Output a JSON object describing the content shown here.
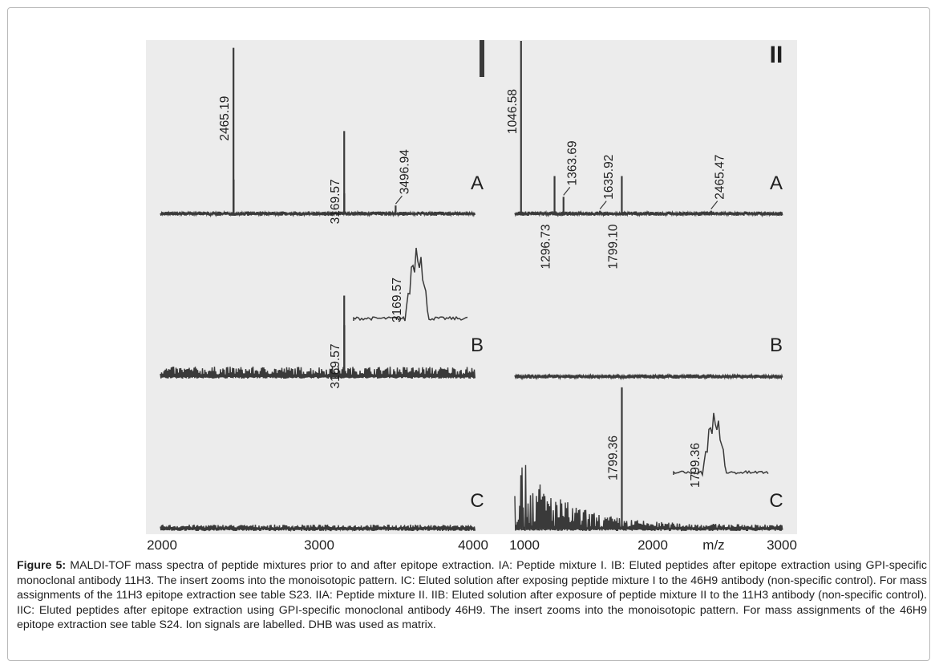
{
  "chart_data": [
    {
      "type": "line",
      "panel": "I",
      "xlim": [
        2000,
        4000
      ],
      "x_ticks": [
        "2000",
        "3000",
        "4000"
      ],
      "spectra": [
        {
          "label": "A",
          "noise": "low",
          "peaks": [
            {
              "mz": 2465.19,
              "rel": 0.96,
              "label": "2465.19"
            },
            {
              "mz": 2466.2,
              "rel": 0.2
            },
            {
              "mz": 3169.57,
              "rel": 0.48,
              "label": "3169.57"
            },
            {
              "mz": 3170.6,
              "rel": 0.12
            },
            {
              "mz": 3496.94,
              "rel": 0.05,
              "label": "3496.94"
            }
          ]
        },
        {
          "label": "B",
          "noise": "high",
          "peaks": [
            {
              "mz": 3169.57,
              "rel": 0.47,
              "label": "3169.57"
            },
            {
              "mz": 3170.6,
              "rel": 0.3
            }
          ],
          "insert": {
            "peak_label": "3169.57"
          }
        },
        {
          "label": "C",
          "noise": "flat",
          "peaks": []
        }
      ]
    },
    {
      "type": "line",
      "panel": "II",
      "xlim": [
        1000,
        3000
      ],
      "x_ticks": [
        "1000",
        "2000",
        "3000"
      ],
      "xlabel": "m/z",
      "spectra": [
        {
          "label": "A",
          "noise": "low",
          "peaks": [
            {
              "mz": 1046.58,
              "rel": 1.0,
              "label": "1046.58"
            },
            {
              "mz": 1296.73,
              "rel": 0.22,
              "label": "1296.73"
            },
            {
              "mz": 1363.69,
              "rel": 0.1,
              "label": "1363.69"
            },
            {
              "mz": 1635.92,
              "rel": 0.02,
              "label": "1635.92"
            },
            {
              "mz": 1799.1,
              "rel": 0.22,
              "label": "1799.10"
            },
            {
              "mz": 2465.47,
              "rel": 0.02,
              "label": "2465.47"
            }
          ]
        },
        {
          "label": "B",
          "noise": "low",
          "peaks": []
        },
        {
          "label": "C",
          "noise": "decay",
          "peaks": [
            {
              "mz": 1799.36,
              "rel": 0.82,
              "label": "1799.36"
            }
          ],
          "insert": {
            "peak_label": "1799.36"
          }
        }
      ]
    }
  ],
  "caption": {
    "label": "Figure 5:",
    "text": "MALDI-TOF mass spectra of peptide mixtures prior to and after epitope extraction. IA: Peptide mixture I. IB: Eluted peptides after epitope extraction using GPI-specific monoclonal antibody 11H3. The insert zooms into the monoisotopic pattern. IC: Eluted solution after exposing peptide mixture I to the 46H9 antibody (non-specific control). For mass assignments of the 11H3 epitope extraction see table S23. IIA: Peptide mixture II. IIB: Eluted solution after exposure of peptide mixture II to the 11H3 antibody (non-specific control). IIC: Eluted peptides after epitope extraction using GPI-specific monoclonal antibody 46H9. The insert zooms into the monoisotopic pattern. For mass assignments of the 46H9 epitope extraction see table S24. Ion signals are labelled. DHB was used as matrix."
  },
  "colors": {
    "trace": "#3a3a3a",
    "panel_bg": "#ececec",
    "text": "#1f1f1f"
  }
}
